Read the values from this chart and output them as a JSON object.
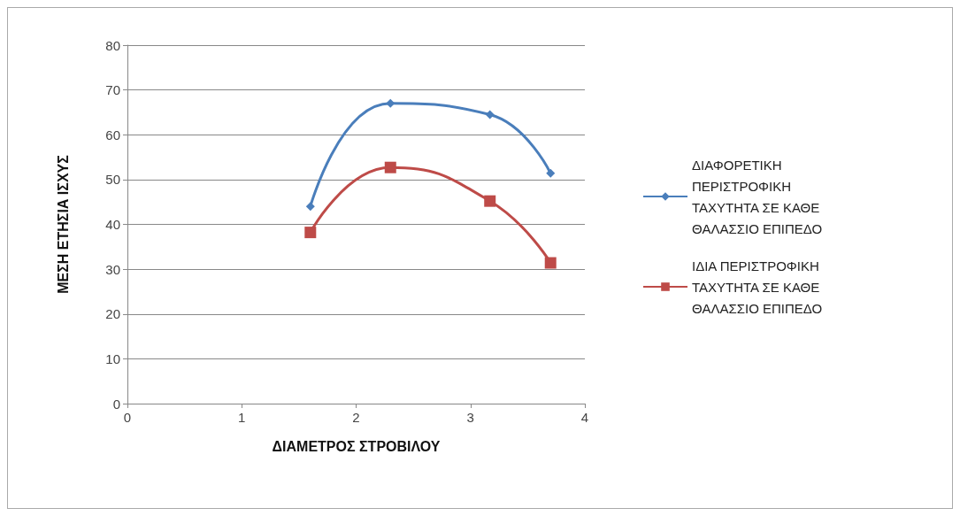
{
  "chart_data": {
    "type": "line",
    "xlabel": "ΔΙΑΜΕΤΡΟΣ ΣΤΡΟΒΙΛΟΥ",
    "ylabel": "ΜΕΣΗ ΕΤΗΣΙΑ ΙΣΧΥΣ",
    "x": [
      1.6,
      2.3,
      3.17,
      3.7
    ],
    "series": [
      {
        "name": "ΔΙΑΦΟΡΕΤΙΚΗ ΠΕΡΙΣΤΡΟΦΙΚΗ ΤΑΧΥΤΗΤΑ ΣΕ ΚΑΘΕ ΘΑΛΑΣΣΙΟ ΕΠΙΠΕΔΟ",
        "color": "#4a7ebb",
        "marker": "diamond",
        "values": [
          44,
          67,
          64.5,
          51.4
        ]
      },
      {
        "name": "ΙΔΙΑ ΠΕΡΙΣΤΡΟΦΙΚΗ ΤΑΧΥΤΗΤΑ ΣΕ ΚΑΘΕ ΘΑΛΑΣΣΙΟ ΕΠΙΠΕΔΟ",
        "color": "#be4b48",
        "marker": "square",
        "values": [
          38.2,
          52.7,
          45.2,
          31.4
        ]
      }
    ],
    "xlim": [
      0,
      4
    ],
    "xticks": [
      0,
      1,
      2,
      3,
      4
    ],
    "ylim": [
      0,
      80
    ],
    "yticks": [
      0,
      10,
      20,
      30,
      40,
      50,
      60,
      70,
      80
    ],
    "grid": "y",
    "legend": "right"
  }
}
